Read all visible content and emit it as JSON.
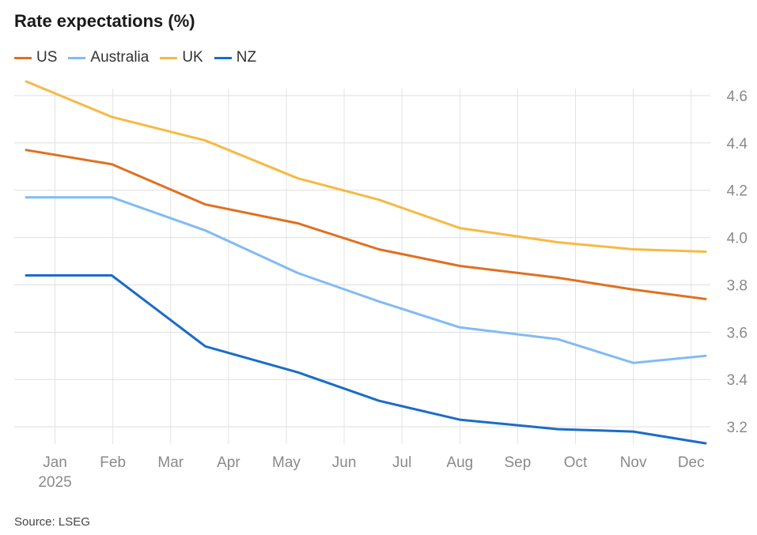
{
  "title": "Rate expectations (%)",
  "source": "Source: LSEG",
  "chart_data": {
    "type": "line",
    "title": "Rate expectations (%)",
    "xlabel": "",
    "ylabel": "",
    "categories": [
      "Jan",
      "Feb",
      "Mar",
      "Apr",
      "May",
      "Jun",
      "Jul",
      "Aug",
      "Sep",
      "Oct",
      "Nov",
      "Dec"
    ],
    "year_label": "2025",
    "y_ticks": [
      "3.2",
      "3.4",
      "3.6",
      "3.8",
      "4.0",
      "4.2",
      "4.4",
      "4.6"
    ],
    "ylim": [
      3.1,
      4.67
    ],
    "xlim": [
      -0.5,
      11.25
    ],
    "grid": true,
    "legend_position": "top-left",
    "series": [
      {
        "name": "US",
        "color": "#e07020",
        "x": [
          -0.5,
          0.98,
          2.6,
          4.2,
          5.6,
          7.0,
          8.7,
          10.0,
          11.25
        ],
        "values": [
          4.37,
          4.31,
          4.14,
          4.06,
          3.95,
          3.88,
          3.83,
          3.78,
          3.74
        ]
      },
      {
        "name": "Australia",
        "color": "#82bbf4",
        "x": [
          -0.5,
          0.98,
          2.6,
          4.2,
          5.6,
          7.0,
          8.7,
          10.0,
          11.25
        ],
        "values": [
          4.17,
          4.17,
          4.03,
          3.85,
          3.73,
          3.62,
          3.57,
          3.47,
          3.5
        ]
      },
      {
        "name": "UK",
        "color": "#f7b944",
        "x": [
          -0.5,
          0.98,
          2.6,
          4.2,
          5.6,
          7.0,
          8.7,
          10.0,
          11.25
        ],
        "values": [
          4.66,
          4.51,
          4.41,
          4.25,
          4.16,
          4.04,
          3.98,
          3.95,
          3.94
        ]
      },
      {
        "name": "NZ",
        "color": "#1a6dc7",
        "x": [
          -0.5,
          0.98,
          2.6,
          4.2,
          5.6,
          7.0,
          8.7,
          10.0,
          11.25
        ],
        "values": [
          3.84,
          3.84,
          3.54,
          3.43,
          3.31,
          3.23,
          3.19,
          3.18,
          3.13
        ]
      }
    ]
  }
}
